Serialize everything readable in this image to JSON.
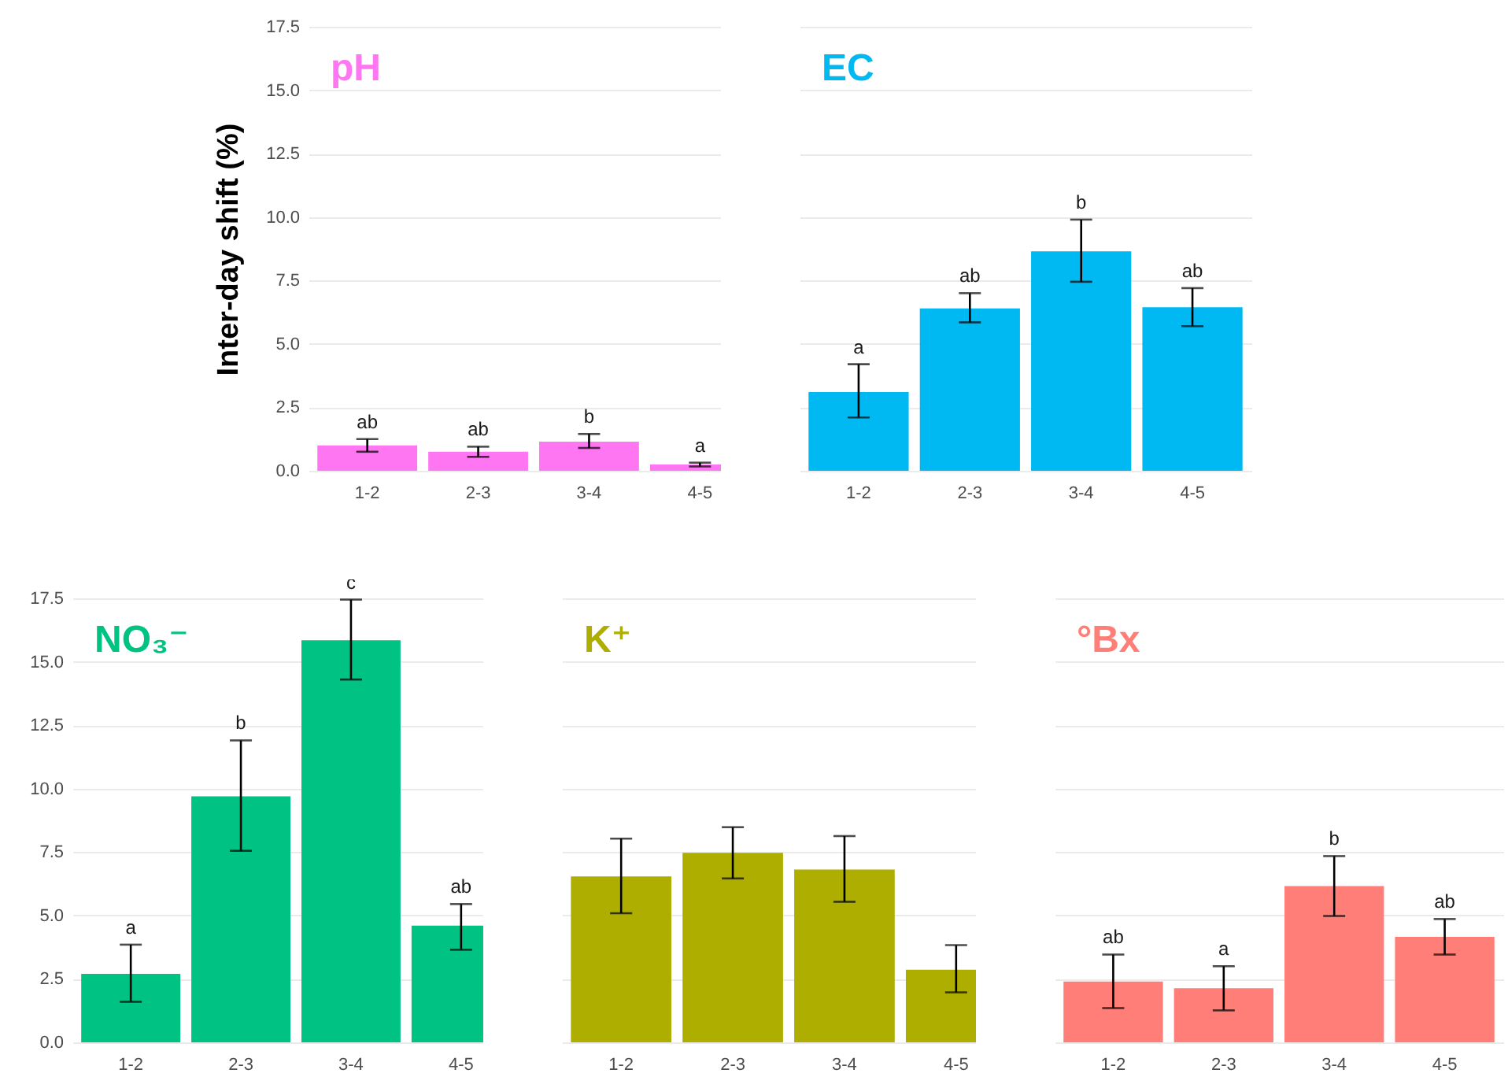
{
  "chart_data": [
    {
      "type": "bar",
      "title": "pH",
      "ylabel": "Inter-day shift (%)",
      "categories": [
        "1-2",
        "2-3",
        "3-4",
        "4-5"
      ],
      "ylim": [
        0,
        17.5
      ],
      "yticks": [
        {
          "value": 0,
          "label": "0.0"
        },
        2.5,
        {
          "value": 5,
          "label": "5.0"
        },
        7.5,
        {
          "value": 10,
          "label": "10.0"
        },
        12.5,
        {
          "value": 15,
          "label": "15.0"
        },
        17.5
      ],
      "grid": "y",
      "series": [
        {
          "color": "#ff76f2",
          "values": [
            1.0,
            0.75,
            1.15,
            0.25
          ],
          "errors": [
            [
              0.75,
              1.25
            ],
            [
              0.55,
              0.95
            ],
            [
              0.9,
              1.45
            ],
            [
              0.17,
              0.32
            ]
          ]
        }
      ],
      "annotations": [
        {
          "text": "ab",
          "x": "1-2",
          "y": 1.25
        },
        {
          "text": "ab",
          "x": "2-3",
          "y": 0.95
        },
        {
          "text": "b",
          "x": "3-4",
          "y": 1.45
        },
        {
          "text": "a",
          "x": "4-5",
          "y": 0.32
        }
      ]
    },
    {
      "type": "bar",
      "title": "EC",
      "categories": [
        "1-2",
        "2-3",
        "3-4",
        "4-5"
      ],
      "ylim": [
        0,
        17.5
      ],
      "yticks": [
        0.0,
        2.5,
        5.0,
        7.5,
        10.0,
        12.5,
        15.0,
        17.5
      ],
      "grid": "y",
      "tick_labels": "x",
      "series": [
        {
          "color": "#00b8f2",
          "values": [
            3.1,
            6.4,
            8.65,
            6.45
          ],
          "errors": [
            [
              2.1,
              4.2
            ],
            [
              5.85,
              7.0
            ],
            [
              7.45,
              9.9
            ],
            [
              5.7,
              7.2
            ]
          ]
        }
      ],
      "annotations": [
        {
          "text": "a",
          "x": "1-2",
          "y": 4.2
        },
        {
          "text": "ab",
          "x": "2-3",
          "y": 7.0
        },
        {
          "text": "b",
          "x": "3-4",
          "y": 9.9
        },
        {
          "text": "ab",
          "x": "4-5",
          "y": 7.2
        }
      ]
    },
    {
      "type": "bar",
      "title": "NO₃⁻",
      "categories": [
        "1-2",
        "2-3",
        "3-4",
        "4-5"
      ],
      "ylim": [
        0,
        17.5
      ],
      "yticks": [
        {
          "value": 0,
          "label": "0.0"
        },
        2.5,
        {
          "value": 5,
          "label": "5.0"
        },
        7.5,
        {
          "value": 10,
          "label": "10.0"
        },
        12.5,
        {
          "value": 15,
          "label": "15.0"
        },
        17.5
      ],
      "grid": "y",
      "series": [
        {
          "color": "#00c383",
          "values": [
            2.7,
            9.7,
            15.85,
            4.6
          ],
          "errors": [
            [
              1.6,
              3.85
            ],
            [
              7.55,
              11.9
            ],
            [
              14.3,
              17.45
            ],
            [
              3.65,
              5.45
            ]
          ]
        }
      ],
      "annotations": [
        {
          "text": "a",
          "x": "1-2",
          "y": 3.85
        },
        {
          "text": "b",
          "x": "2-3",
          "y": 11.9
        },
        {
          "text": "c",
          "x": "3-4",
          "y": 17.45
        },
        {
          "text": "ab",
          "x": "4-5",
          "y": 5.45
        }
      ]
    },
    {
      "type": "bar",
      "title": "K⁺",
      "categories": [
        "1-2",
        "2-3",
        "3-4",
        "4-5"
      ],
      "ylim": [
        0,
        17.5
      ],
      "yticks": [
        0.0,
        2.5,
        5.0,
        7.5,
        10.0,
        12.5,
        15.0,
        17.5
      ],
      "grid": "y",
      "tick_labels": "x",
      "series": [
        {
          "color": "#adae00",
          "values": [
            6.54,
            7.47,
            6.81,
            2.86
          ],
          "errors": [
            [
              5.09,
              8.03
            ],
            [
              6.46,
              8.48
            ],
            [
              5.54,
              8.13
            ],
            [
              1.97,
              3.83
            ]
          ]
        }
      ]
    },
    {
      "type": "bar",
      "title": "°Bx",
      "categories": [
        "1-2",
        "2-3",
        "3-4",
        "4-5"
      ],
      "ylim": [
        0,
        17.5
      ],
      "yticks": [
        0.0,
        2.5,
        5.0,
        7.5,
        10.0,
        12.5,
        15.0,
        17.5
      ],
      "grid": "y",
      "tick_labels": "x",
      "series": [
        {
          "color": "#ff7f78",
          "values": [
            2.4,
            2.13,
            6.16,
            4.16
          ],
          "errors": [
            [
              1.35,
              3.46
            ],
            [
              1.26,
              3.0
            ],
            [
              4.98,
              7.34
            ],
            [
              3.46,
              4.86
            ]
          ]
        }
      ],
      "annotations": [
        {
          "text": "ab",
          "x": "1-2",
          "y": 3.46
        },
        {
          "text": "a",
          "x": "2-3",
          "y": 3.0
        },
        {
          "text": "b",
          "x": "3-4",
          "y": 7.34
        },
        {
          "text": "ab",
          "x": "4-5",
          "y": 4.86
        }
      ]
    }
  ]
}
